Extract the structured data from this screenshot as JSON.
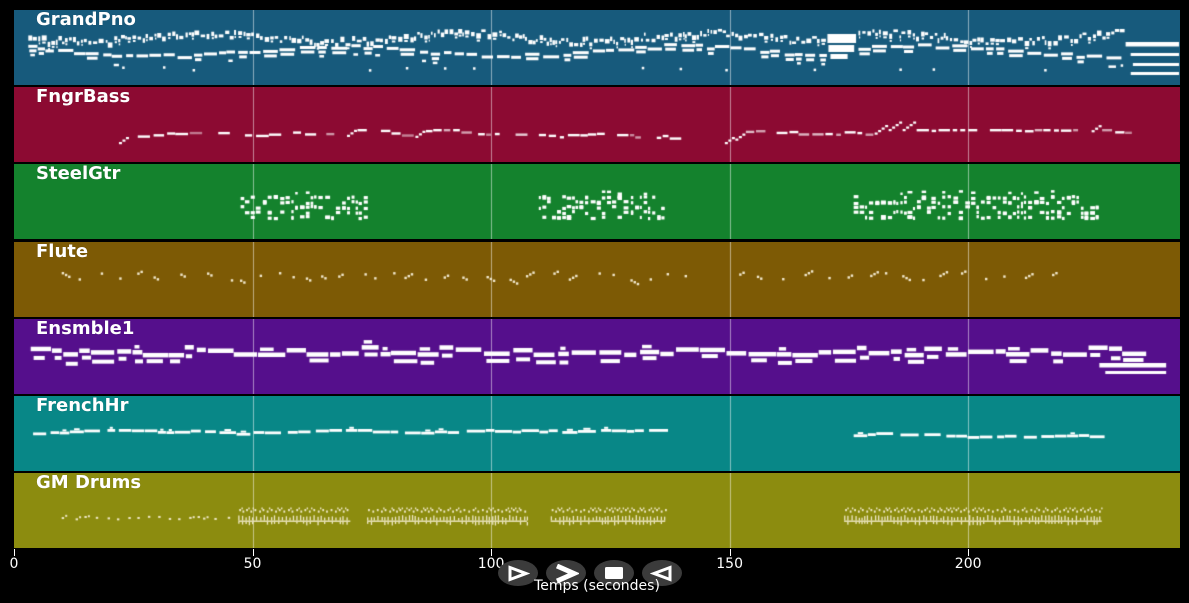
{
  "figure": {
    "background": "#000000",
    "grid_color": "rgba(255,255,255,0.5)",
    "text_color": "#ffffff"
  },
  "axis": {
    "label": "Temps (secondes)",
    "t_end": 244.4,
    "ticks": [
      {
        "label": "0",
        "sec": 0
      },
      {
        "label": "50",
        "sec": 50
      },
      {
        "label": "100",
        "sec": 100
      },
      {
        "label": "150",
        "sec": 150
      },
      {
        "label": "200",
        "sec": 200
      }
    ]
  },
  "transport": {
    "button_color": "#3b3b3b",
    "glyph_color": "#ffffff",
    "buttons": [
      {
        "name": "play",
        "glyph": "triangle-right-outline"
      },
      {
        "name": "fast-forward",
        "glyph": "chevron-right"
      },
      {
        "name": "stop",
        "glyph": "square"
      },
      {
        "name": "rewind",
        "glyph": "triangle-left-outline"
      }
    ]
  },
  "tracks": [
    {
      "label": "GrandPno",
      "color": "#175a7c",
      "note_color": "#ffffff",
      "segments": [
        {
          "type": "piano",
          "t0": 3,
          "t1": 170
        },
        {
          "type": "block",
          "t0": 170.5,
          "t1": 176.5
        },
        {
          "type": "piano",
          "t0": 177,
          "t1": 232
        },
        {
          "type": "sustain",
          "t0": 233,
          "t1": 244.2,
          "lines": [
            32,
            43,
            53,
            62
          ]
        }
      ]
    },
    {
      "label": "FngrBass",
      "color": "#8c0a32",
      "note_color": "#ffffff",
      "segments": [
        {
          "type": "bassline",
          "t0": 22,
          "t1": 140.5
        },
        {
          "type": "bassline",
          "t0": 149,
          "t1": 234.5
        }
      ]
    },
    {
      "label": "SteelGtr",
      "color": "#14822d",
      "note_color": "#ffffff",
      "segments": [
        {
          "type": "chords",
          "t0": 47.5,
          "t1": 73.5
        },
        {
          "type": "chords",
          "t0": 110,
          "t1": 136.5
        },
        {
          "type": "chords",
          "t0": 176,
          "t1": 227
        }
      ]
    },
    {
      "label": "Flute",
      "color": "#7d5a05",
      "note_color": "#f3ead0",
      "segments": [
        {
          "type": "sparse",
          "t0": 10,
          "t1": 144
        },
        {
          "type": "sparse",
          "t0": 152,
          "t1": 220.5
        }
      ]
    },
    {
      "label": "Ensmble1",
      "color": "#550f8c",
      "note_color": "#ffffff",
      "segments": [
        {
          "type": "ens",
          "t0": 3.5,
          "t1": 233
        },
        {
          "type": "sustain",
          "t0": 227.5,
          "t1": 241.5,
          "lines": [
            44,
            52
          ]
        }
      ]
    },
    {
      "label": "FrenchHr",
      "color": "#088787",
      "note_color": "#ffffff",
      "segments": [
        {
          "type": "horn",
          "t0": 4,
          "t1": 134.5
        },
        {
          "type": "horn",
          "t0": 176,
          "t1": 226.5
        }
      ]
    },
    {
      "label": "GM Drums",
      "color": "#8c8c0f",
      "note_color": "#efe8c6",
      "segments": [
        {
          "type": "drums_sparse",
          "t0": 10,
          "t1": 46
        },
        {
          "type": "drums_dense",
          "t0": 47,
          "t1": 70.5
        },
        {
          "type": "drums_dense",
          "t0": 74,
          "t1": 107.5
        },
        {
          "type": "drums_dense",
          "t0": 112.5,
          "t1": 136.5
        },
        {
          "type": "drums_dense",
          "t0": 174,
          "t1": 228
        }
      ]
    }
  ]
}
